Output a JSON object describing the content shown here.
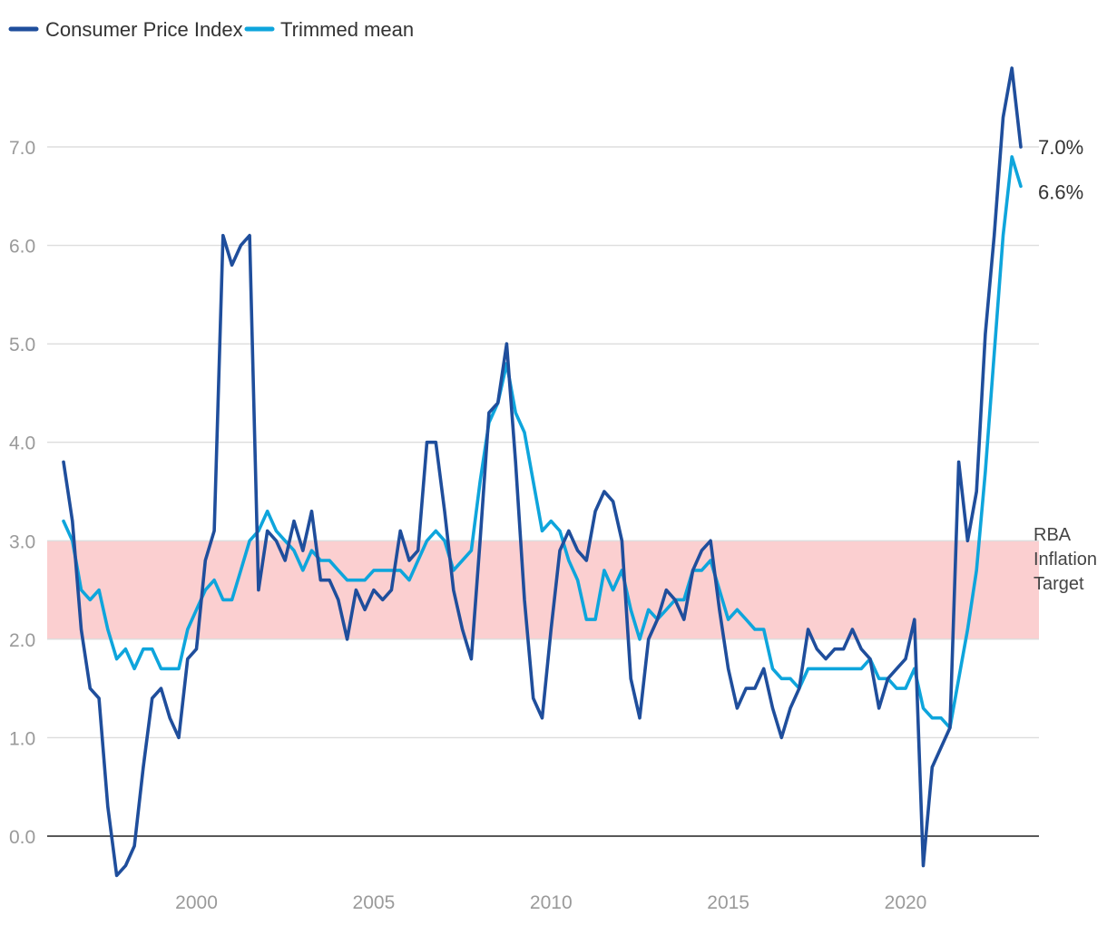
{
  "chart_data": {
    "type": "line",
    "title": "",
    "xlabel": "",
    "ylabel": "",
    "x_start": 1996.25,
    "x_step": 0.25,
    "xlim": [
      1996.0,
      2023.5
    ],
    "ylim": [
      -0.5,
      7.8
    ],
    "x_ticks": [
      2000,
      2005,
      2010,
      2015,
      2020
    ],
    "x_tick_labels": [
      "2000",
      "2005",
      "2010",
      "2015",
      "2020"
    ],
    "y_ticks": [
      0,
      1,
      2,
      3,
      4,
      5,
      6,
      7
    ],
    "y_tick_labels": [
      "0.0",
      "1.0",
      "2.0",
      "3.0",
      "4.0",
      "5.0",
      "6.0",
      "7.0"
    ],
    "grid": true,
    "legend_position": "top-left",
    "series": [
      {
        "name": "Consumer Price Index",
        "color": "#1f4e9c",
        "values": [
          3.8,
          3.2,
          2.1,
          1.5,
          1.4,
          0.3,
          -0.4,
          -0.3,
          -0.1,
          0.7,
          1.4,
          1.5,
          1.2,
          1.0,
          1.8,
          1.9,
          2.8,
          3.1,
          6.1,
          5.8,
          6.0,
          6.1,
          2.5,
          3.1,
          3.0,
          2.8,
          3.2,
          2.9,
          3.3,
          2.6,
          2.6,
          2.4,
          2.0,
          2.5,
          2.3,
          2.5,
          2.4,
          2.5,
          3.1,
          2.8,
          2.9,
          4.0,
          4.0,
          3.3,
          2.5,
          2.1,
          1.8,
          3.0,
          4.3,
          4.4,
          5.0,
          3.8,
          2.4,
          1.4,
          1.2,
          2.1,
          2.9,
          3.1,
          2.9,
          2.8,
          3.3,
          3.5,
          3.4,
          3.0,
          1.6,
          1.2,
          2.0,
          2.2,
          2.5,
          2.4,
          2.2,
          2.7,
          2.9,
          3.0,
          2.3,
          1.7,
          1.3,
          1.5,
          1.5,
          1.7,
          1.3,
          1.0,
          1.3,
          1.5,
          2.1,
          1.9,
          1.8,
          1.9,
          1.9,
          2.1,
          1.9,
          1.8,
          1.3,
          1.6,
          1.7,
          1.8,
          2.2,
          -0.3,
          0.7,
          0.9,
          1.1,
          3.8,
          3.0,
          3.5,
          5.1,
          6.1,
          7.3,
          7.8,
          7.0
        ],
        "end_label": "7.0%"
      },
      {
        "name": "Trimmed mean",
        "color": "#0ea5dc",
        "values": [
          3.2,
          3.0,
          2.5,
          2.4,
          2.5,
          2.1,
          1.8,
          1.9,
          1.7,
          1.9,
          1.9,
          1.7,
          1.7,
          1.7,
          2.1,
          2.3,
          2.5,
          2.6,
          2.4,
          2.4,
          2.7,
          3.0,
          3.1,
          3.3,
          3.1,
          3.0,
          2.9,
          2.7,
          2.9,
          2.8,
          2.8,
          2.7,
          2.6,
          2.6,
          2.6,
          2.7,
          2.7,
          2.7,
          2.7,
          2.6,
          2.8,
          3.0,
          3.1,
          3.0,
          2.7,
          2.8,
          2.9,
          3.6,
          4.2,
          4.4,
          4.8,
          4.3,
          4.1,
          3.6,
          3.1,
          3.2,
          3.1,
          2.8,
          2.6,
          2.2,
          2.2,
          2.7,
          2.5,
          2.7,
          2.3,
          2.0,
          2.3,
          2.2,
          2.3,
          2.4,
          2.4,
          2.7,
          2.7,
          2.8,
          2.5,
          2.2,
          2.3,
          2.2,
          2.1,
          2.1,
          1.7,
          1.6,
          1.6,
          1.5,
          1.7,
          1.7,
          1.7,
          1.7,
          1.7,
          1.7,
          1.7,
          1.8,
          1.6,
          1.6,
          1.5,
          1.5,
          1.7,
          1.3,
          1.2,
          1.2,
          1.1,
          1.6,
          2.1,
          2.7,
          3.7,
          4.9,
          6.1,
          6.9,
          6.6
        ],
        "end_label": "6.6%"
      }
    ],
    "band": {
      "label_lines": [
        "RBA",
        "Inflation",
        "Target"
      ],
      "y_min": 2.0,
      "y_max": 3.0,
      "color": "#fbcfd0"
    }
  }
}
